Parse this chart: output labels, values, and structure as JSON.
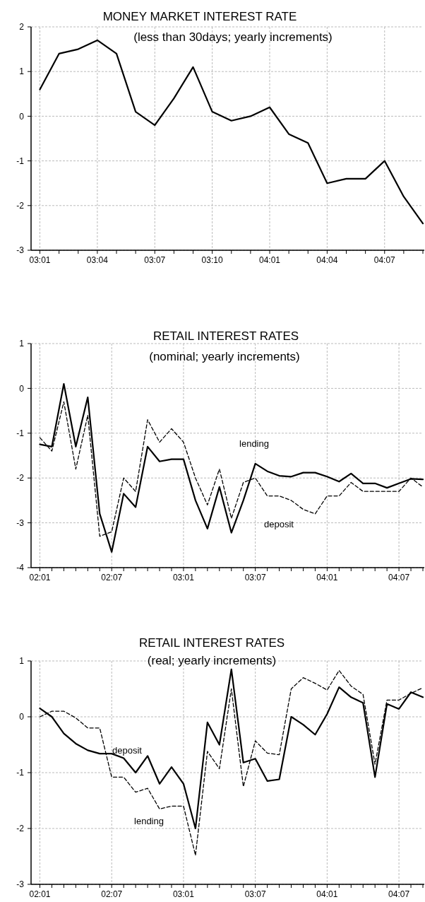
{
  "chart_data": [
    {
      "type": "line",
      "title": "MONEY MARKET INTEREST RATE",
      "subtitle": "(less than 30days; yearly increments)",
      "categories": [
        "03:01",
        null,
        null,
        "03:04",
        null,
        null,
        "03:07",
        null,
        null,
        "03:10",
        null,
        null,
        "04:01",
        null,
        null,
        "04:04",
        null,
        null,
        "04:07",
        null,
        null
      ],
      "series": [
        {
          "color": "#000000",
          "line_style": "solid",
          "values": [
            0.6,
            1.4,
            1.5,
            1.7,
            1.4,
            0.1,
            -0.2,
            0.4,
            1.1,
            0.1,
            -0.1,
            0.0,
            0.2,
            -0.4,
            -0.6,
            -1.5,
            -1.4,
            -1.4,
            -1.0,
            -1.8,
            -2.4
          ]
        }
      ],
      "ylim": [
        -3,
        2
      ],
      "yticks": [
        -3,
        -2,
        -1,
        0,
        1,
        2
      ],
      "grid": true
    },
    {
      "type": "line",
      "title": "RETAIL INTEREST RATES",
      "subtitle": "(nominal; yearly increments)",
      "categories": [
        "02:01",
        null,
        null,
        null,
        null,
        null,
        "02:07",
        null,
        null,
        null,
        null,
        null,
        "03:01",
        null,
        null,
        null,
        null,
        null,
        "03:07",
        null,
        null,
        null,
        null,
        null,
        "04:01",
        null,
        null,
        null,
        null,
        null,
        "04:07",
        null,
        null
      ],
      "series": [
        {
          "name": "lending",
          "color": "#000000",
          "line_style": "solid",
          "values": [
            -1.25,
            -1.3,
            0.1,
            -1.3,
            -0.2,
            -2.8,
            -3.65,
            -2.35,
            -2.65,
            -1.3,
            -1.63,
            -1.58,
            -1.58,
            -2.5,
            -3.13,
            -2.2,
            -3.22,
            -2.5,
            -1.68,
            -1.85,
            -1.95,
            -1.97,
            -1.88,
            -1.88,
            -1.97,
            -2.08,
            -1.9,
            -2.12,
            -2.12,
            -2.22,
            -2.12,
            -2.02,
            -2.03
          ]
        },
        {
          "name": "deposit",
          "color": "#000000",
          "line_style": "dashed",
          "values": [
            -1.1,
            -1.4,
            -0.3,
            -1.8,
            -0.6,
            -3.3,
            -3.2,
            -2.0,
            -2.3,
            -0.7,
            -1.2,
            -0.9,
            -1.2,
            -2.0,
            -2.6,
            -1.8,
            -2.9,
            -2.1,
            -2.0,
            -2.4,
            -2.4,
            -2.5,
            -2.7,
            -2.8,
            -2.4,
            -2.4,
            -2.1,
            -2.3,
            -2.3,
            -2.3,
            -2.3,
            -2.0,
            -2.2
          ]
        }
      ],
      "ylim": [
        -4,
        1
      ],
      "yticks": [
        -4,
        -3,
        -2,
        -1,
        0,
        1
      ],
      "grid": true
    },
    {
      "type": "line",
      "title": "RETAIL INTEREST RATES",
      "subtitle": "(real; yearly increments)",
      "categories": [
        "02:01",
        null,
        null,
        null,
        null,
        null,
        "02:07",
        null,
        null,
        null,
        null,
        null,
        "03:01",
        null,
        null,
        null,
        null,
        null,
        "03:07",
        null,
        null,
        null,
        null,
        null,
        "04:01",
        null,
        null,
        null,
        null,
        null,
        "04:07",
        null,
        null
      ],
      "series": [
        {
          "name": "deposit",
          "color": "#000000",
          "line_style": "solid",
          "values": [
            0.15,
            0.0,
            -0.3,
            -0.48,
            -0.6,
            -0.66,
            -0.66,
            -0.74,
            -1.0,
            -0.7,
            -1.2,
            -0.9,
            -1.2,
            -2.0,
            -0.1,
            -0.5,
            0.85,
            -0.82,
            -0.75,
            -1.15,
            -1.12,
            0.0,
            -0.14,
            -0.32,
            0.05,
            0.53,
            0.35,
            0.25,
            -1.08,
            0.23,
            0.14,
            0.44,
            0.35
          ]
        },
        {
          "name": "lending",
          "color": "#000000",
          "line_style": "dashed",
          "values": [
            0.0,
            0.1,
            0.1,
            -0.02,
            -0.2,
            -0.2,
            -1.08,
            -1.08,
            -1.35,
            -1.28,
            -1.65,
            -1.6,
            -1.6,
            -2.48,
            -0.62,
            -0.93,
            0.5,
            -1.25,
            -0.43,
            -0.65,
            -0.68,
            0.5,
            0.7,
            0.6,
            0.48,
            0.83,
            0.55,
            0.4,
            -0.85,
            0.3,
            0.3,
            0.42,
            0.52
          ]
        }
      ],
      "ylim": [
        -3,
        1
      ],
      "yticks": [
        -3,
        -2,
        -1,
        0,
        1
      ],
      "grid": true
    }
  ]
}
